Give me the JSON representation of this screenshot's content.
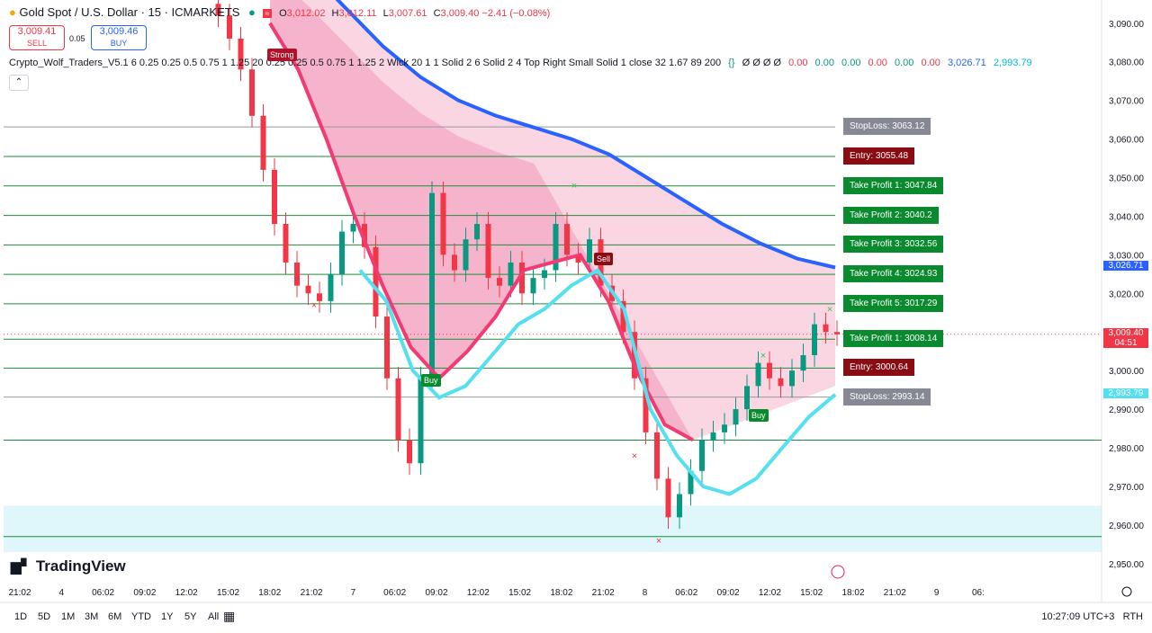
{
  "header": {
    "symbol": "Gold Spot / U.S. Dollar · 15 · ICMARKETS",
    "ohlc": {
      "o": "3,012.02",
      "h": "3,012.11",
      "l": "3,007.61",
      "c": "3,009.40",
      "chg": "−2.41 (−0.08%)"
    },
    "sell_price": "3,009.41",
    "sell_label": "SELL",
    "buy_price": "3,009.46",
    "buy_label": "BUY",
    "spread": "0.05"
  },
  "indicator": {
    "name": "Crypto_Wolf_Traders_V5.1 6 0.25 0.25 0.5 0.75 1 1.25 20 0.25 0.25 0.5 0.75 1 1.25 2 Wick 20 1 1 Solid 2 6 Solid 2 4 Top Right Small Solid 1 close 32 1.67 89 200",
    "vals": [
      "Ø Ø Ø Ø",
      "0.00",
      "0.00",
      "0.00",
      "0.00",
      "0.00",
      "0.00",
      "3,026.71",
      "2,993.79"
    ]
  },
  "levels": [
    {
      "label": "StopLoss: 3063.12",
      "price": 3063.12,
      "kind": "sl"
    },
    {
      "label": "Entry: 3055.48",
      "price": 3055.48,
      "kind": "en"
    },
    {
      "label": "Take Profit 1: 3047.84",
      "price": 3047.84,
      "kind": "tp"
    },
    {
      "label": "Take Profit 2: 3040.2",
      "price": 3040.2,
      "kind": "tp"
    },
    {
      "label": "Take Profit 3: 3032.56",
      "price": 3032.56,
      "kind": "tp"
    },
    {
      "label": "Take Profit 4: 3024.93",
      "price": 3024.93,
      "kind": "tp"
    },
    {
      "label": "Take Profit 5: 3017.29",
      "price": 3017.29,
      "kind": "tp"
    },
    {
      "label": "Take Profit 1: 3008.14",
      "price": 3008.14,
      "kind": "tp"
    },
    {
      "label": "Entry: 3000.64",
      "price": 3000.64,
      "kind": "en"
    },
    {
      "label": "StopLoss: 2993.14",
      "price": 2993.14,
      "kind": "sl"
    }
  ],
  "axis_tags": [
    {
      "text": "3,026.71",
      "price": 3026.71,
      "color": "#2962ff"
    },
    {
      "text": "3,009.40",
      "price": 3009.4,
      "color": "#f23645",
      "sub": "04:51"
    },
    {
      "text": "2,993.79",
      "price": 2993.79,
      "color": "#54e0f0"
    }
  ],
  "signals": {
    "strong": "Strong",
    "buy": "Buy",
    "sell": "Sell"
  },
  "chart_data": {
    "type": "line",
    "ylim": [
      2946,
      3096
    ],
    "y_ticks": [
      3090,
      3080,
      3070,
      3060,
      3050,
      3040,
      3030,
      3020,
      3010,
      3000,
      2990,
      2980,
      2970,
      2960,
      2950
    ],
    "y_tick_labels": [
      "3,090.00",
      "3,080.00",
      "3,070.00",
      "3,060.00",
      "3,050.00",
      "3,040.00",
      "3,030.00",
      "3,020.00",
      "3,010.00",
      "3,000.00",
      "2,990.00",
      "2,980.00",
      "2,970.00",
      "2,960.00",
      "2,950.00"
    ],
    "x_ticks": [
      "21:02",
      "4",
      "06:02",
      "09:02",
      "12:02",
      "15:02",
      "18:02",
      "21:02",
      "7",
      "06:02",
      "09:02",
      "12:02",
      "15:02",
      "18:02",
      "21:02",
      "8",
      "06:02",
      "09:02",
      "12:02",
      "15:02",
      "18:02",
      "21:02",
      "9",
      "06:"
    ],
    "price": [
      3095,
      3092,
      3086,
      3078,
      3066,
      3052,
      3038,
      3028,
      3022,
      3020,
      3018,
      3025,
      3036,
      3038,
      3032,
      3014,
      2998,
      2982,
      2976,
      2998,
      3046,
      3030,
      3026,
      3034,
      3038,
      3024,
      3022,
      3028,
      3020,
      3024,
      3026,
      3038,
      3030,
      3028,
      3034,
      3022,
      3018,
      3010,
      2998,
      2984,
      2972,
      2962,
      2968,
      2974,
      2982,
      2984,
      2986,
      2990,
      2996,
      3002,
      2998,
      2996,
      3000,
      3004,
      3012,
      3010,
      3009.4
    ],
    "blue_ma": [
      3112,
      3104,
      3094,
      3084,
      3076,
      3070,
      3066,
      3063,
      3060,
      3056,
      3050,
      3044,
      3038,
      3033,
      3029,
      3026.71
    ],
    "cyan_band": [
      3026,
      3018,
      3000,
      2993,
      2996,
      3004,
      3012,
      3016,
      3022,
      3026,
      3016,
      2990,
      2978,
      2970,
      2968,
      2972,
      2980,
      2988,
      2993.79
    ],
    "red_band": [
      3090,
      3078,
      3060,
      3040,
      3022,
      3006,
      2998,
      3005,
      3014,
      3026,
      3028,
      3030,
      3018,
      3000,
      2986,
      2982
    ]
  },
  "watermark": "TradingView",
  "timeframes": [
    "1D",
    "5D",
    "1M",
    "3M",
    "6M",
    "YTD",
    "1Y",
    "5Y",
    "All"
  ],
  "clock": "10:27:09 UTC+3",
  "rth": "RTH"
}
